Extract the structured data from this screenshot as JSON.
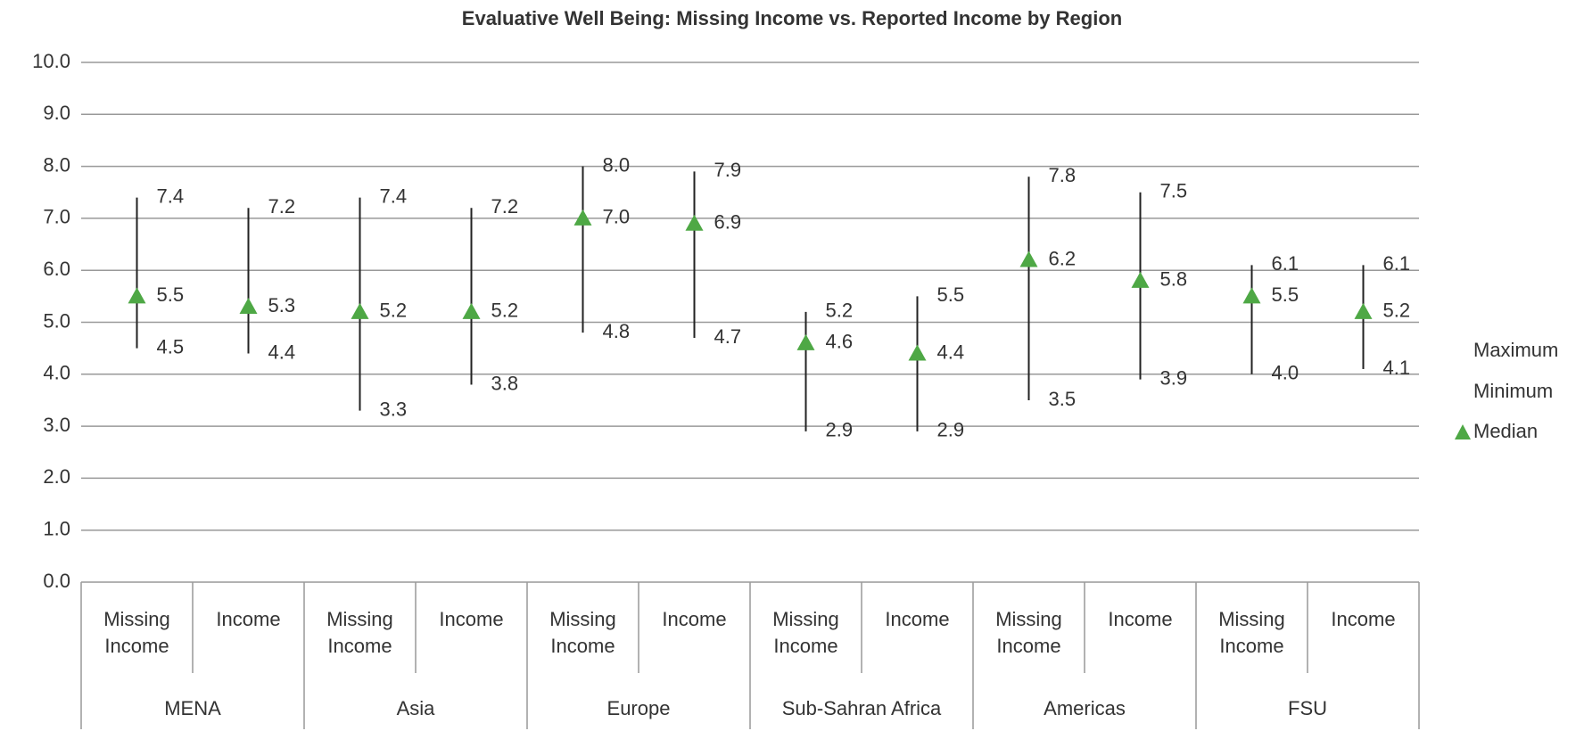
{
  "chart_data": {
    "type": "high-low-median",
    "title": "Evaluative Well Being: Missing Income vs. Reported Income by Region",
    "categories": [
      "Missing Income",
      "Income",
      "Missing Income",
      "Income",
      "Missing Income",
      "Income",
      "Missing Income",
      "Income",
      "Missing Income",
      "Income",
      "Missing Income",
      "Income"
    ],
    "groups": [
      "MENA",
      "Asia",
      "Europe",
      "Sub-Sahran Africa",
      "Americas",
      "FSU"
    ],
    "series": [
      {
        "name": "Maximum",
        "values": [
          7.4,
          7.2,
          7.4,
          7.2,
          8,
          7.9,
          5.2,
          5.5,
          7.8,
          7.5,
          6.1,
          6.1
        ],
        "value_labels": [
          "7.4",
          "7.2",
          "7.4",
          "7.2",
          "8.0",
          "7.9",
          "5.2",
          "5.5",
          "7.8",
          "7.5",
          "6.1",
          "6.1"
        ]
      },
      {
        "name": "Minimum",
        "values": [
          4.5,
          4.4,
          3.3,
          3.8,
          4.8,
          4.7,
          2.9,
          2.9,
          3.5,
          3.9,
          4,
          4.1
        ],
        "value_labels": [
          "4.5",
          "4.4",
          "3.3",
          "3.8",
          "4.8",
          "4.7",
          "2.9",
          "2.9",
          "3.5",
          "3.9",
          "4.0",
          "4.1"
        ]
      },
      {
        "name": "Median",
        "color": "#4ea845",
        "values": [
          5.5,
          5.3,
          5.2,
          5.2,
          7,
          6.9,
          4.6,
          4.4,
          6.2,
          5.8,
          5.5,
          5.2
        ],
        "value_labels": [
          "5.5",
          "5.3",
          "5.2",
          "5.2",
          "7.0",
          "6.9",
          "4.6",
          "4.4",
          "6.2",
          "5.8",
          "5.5",
          "5.2"
        ]
      }
    ],
    "ylim": [
      0,
      10
    ],
    "yticks": [
      {
        "value": 0,
        "label": "0.0"
      },
      {
        "value": 1,
        "label": "1.0"
      },
      {
        "value": 2,
        "label": "2.0"
      },
      {
        "value": 3,
        "label": "3.0"
      },
      {
        "value": 4,
        "label": "4.0"
      },
      {
        "value": 5,
        "label": "5.0"
      },
      {
        "value": 6,
        "label": "6.0"
      },
      {
        "value": 7,
        "label": "7.0"
      },
      {
        "value": 8,
        "label": "8.0"
      },
      {
        "value": 9,
        "label": "9.0"
      },
      {
        "value": 10,
        "label": "10.0"
      }
    ],
    "grid": true,
    "legend": "right"
  }
}
